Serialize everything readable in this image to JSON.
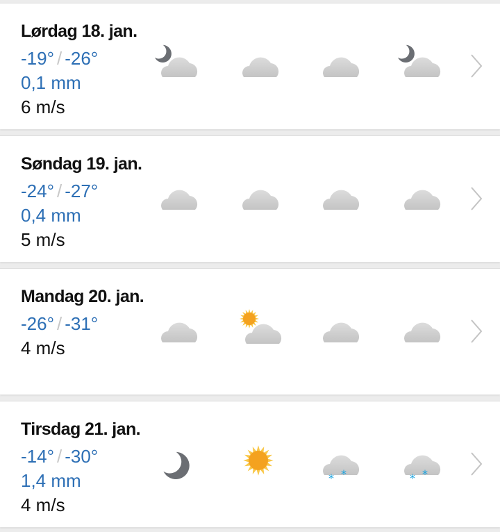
{
  "days": [
    {
      "title": "Lørdag 18. jan.",
      "high": "-19°",
      "low": "-26°",
      "precip": "0,1 mm",
      "wind": "6 m/s",
      "icons": [
        "partly-cloudy-night",
        "cloudy",
        "cloudy",
        "partly-cloudy-night"
      ]
    },
    {
      "title": "Søndag 19. jan.",
      "high": "-24°",
      "low": "-27°",
      "precip": "0,4 mm",
      "wind": "5 m/s",
      "icons": [
        "cloudy",
        "cloudy",
        "cloudy",
        "cloudy"
      ]
    },
    {
      "title": "Mandag 20. jan.",
      "high": "-26°",
      "low": "-31°",
      "precip": null,
      "wind": "4 m/s",
      "icons": [
        "cloudy",
        "partly-cloudy-day",
        "cloudy",
        "cloudy"
      ]
    },
    {
      "title": "Tirsdag 21. jan.",
      "high": "-14°",
      "low": "-30°",
      "precip": "1,4 mm",
      "wind": "4 m/s",
      "icons": [
        "clear-night",
        "clear-day",
        "light-snow",
        "light-snow"
      ]
    }
  ],
  "separator": "/",
  "colors": {
    "temp": "#2d6fb5",
    "snow": "#1aa3e0",
    "sun": "#f6a623",
    "moon": "#6b6e73",
    "cloud": "#cfcfcf"
  }
}
